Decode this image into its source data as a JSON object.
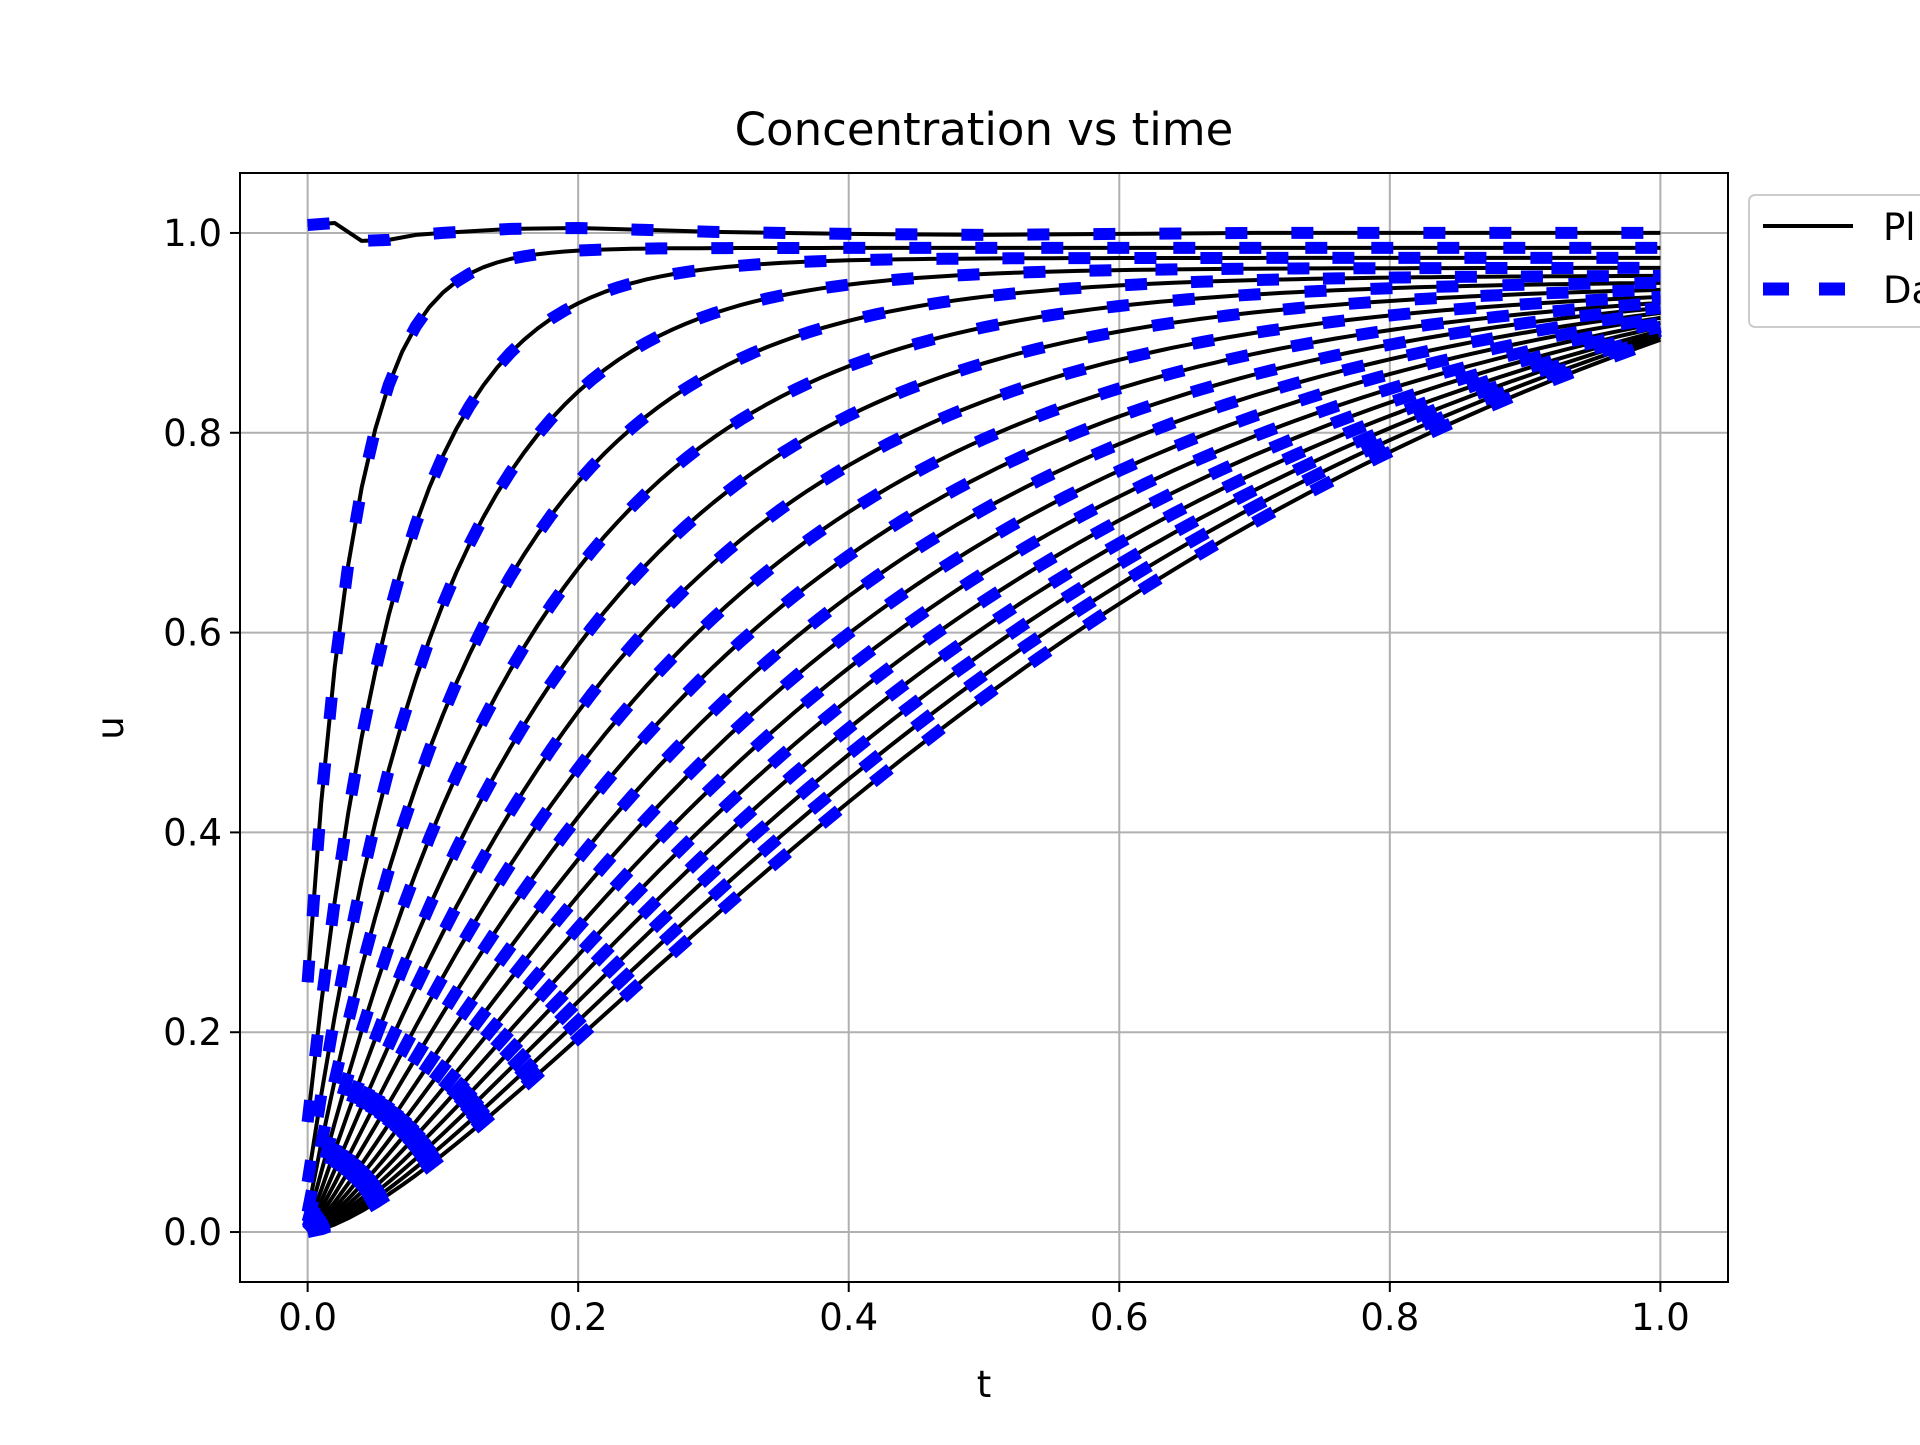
{
  "chart_data": {
    "type": "line",
    "title": "Concentration vs time",
    "xlabel": "t",
    "ylabel": "u",
    "xlim": [
      -0.05,
      1.05
    ],
    "ylim": [
      -0.05,
      1.06
    ],
    "xticks": [
      0.0,
      0.2,
      0.4,
      0.6,
      0.8,
      1.0
    ],
    "xtick_labels": [
      "0.0",
      "0.2",
      "0.4",
      "0.6",
      "0.8",
      "1.0"
    ],
    "yticks": [
      0.0,
      0.2,
      0.4,
      0.6,
      0.8,
      1.0
    ],
    "ytick_labels": [
      "0.0",
      "0.2",
      "0.4",
      "0.6",
      "0.8",
      "1.0"
    ],
    "grid": true,
    "legend": {
      "placement": "outside upper right (clipped)",
      "entries": [
        {
          "label": "Pl",
          "style": "solid",
          "color": "#000000"
        },
        {
          "label": "Da",
          "style": "dashed",
          "color": "#0000ff"
        }
      ]
    },
    "series": [
      {
        "style": "solid",
        "color": "#000000",
        "x": [
          0.0,
          0.02,
          0.04,
          0.06,
          0.08,
          0.1,
          0.15,
          0.2,
          0.25,
          0.3,
          0.4,
          0.5,
          0.6,
          0.7,
          0.8,
          0.9,
          1.0
        ],
        "y": [
          1.008,
          1.01,
          0.992,
          0.993,
          0.998,
          1.0,
          1.004,
          1.005,
          1.003,
          1.001,
          0.999,
          0.998,
          0.999,
          1.0,
          1.0,
          1.0,
          1.0
        ]
      }
    ],
    "family": {
      "description": "Family of solid black (Pl) curves with overlaid blue dashed (Da) curves, one pair per spatial position; curves rise from low initial values toward 1.0 at t=1.0",
      "color_solid": "#000000",
      "color_dashed": "#0000ff",
      "curve_count": 18,
      "curve_end_values_at_t1": [
        0.995,
        0.985,
        0.975,
        0.965,
        0.957,
        0.95,
        0.943,
        0.936,
        0.93,
        0.925,
        0.92,
        0.915,
        0.91,
        0.906,
        0.902,
        0.899,
        0.896,
        0.893
      ],
      "curve_start_values_at_t0": [
        0.535,
        0.25,
        0.11,
        0.05,
        0.02,
        0.01,
        0.005,
        0.003,
        0.002,
        0.001,
        0.0,
        0.0,
        0.0,
        0.0,
        0.0,
        0.0,
        0.0,
        0.0
      ]
    }
  }
}
